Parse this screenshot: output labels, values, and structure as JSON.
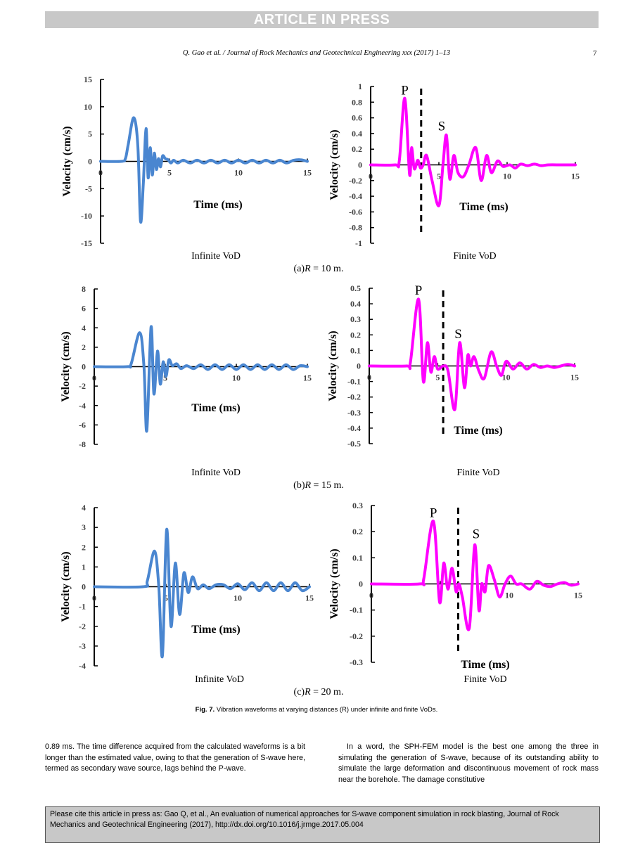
{
  "banner": "ARTICLE IN PRESS",
  "running_head": "Q. Gao et al. / Journal of Rock Mechanics and Geotechnical Engineering xxx (2017) 1–13",
  "page_number": "7",
  "figure": {
    "caption_label": "Fig. 7.",
    "caption_text": "Vibration waveforms at varying distances (R) under infinite and finite VoDs.",
    "panels": [
      {
        "caption_prefix": "(a)",
        "caption_var": "R",
        "caption_rest": " = 10 m."
      },
      {
        "caption_prefix": "(b)",
        "caption_var": "R",
        "caption_rest": " = 15 m."
      },
      {
        "caption_prefix": "(c)",
        "caption_var": "R",
        "caption_rest": " = 20 m."
      }
    ]
  },
  "colors": {
    "infinite": "#4a86d0",
    "finite": "#ff00ff"
  },
  "chart_data": [
    {
      "id": "a-infinite",
      "type": "line",
      "panel": "(a) R = 10 m",
      "subtitle": "Infinite VoD",
      "xlabel": "Time (ms)",
      "ylabel": "Velocity (cm/s)",
      "xlim": [
        0,
        15
      ],
      "ylim": [
        -15,
        15
      ],
      "xticks": [
        0,
        5,
        10,
        15
      ],
      "yticks": [
        15,
        10,
        5,
        0,
        -5,
        -10,
        -15
      ],
      "ytick_labels": [
        "15",
        "10",
        "5",
        "0",
        "-5",
        "-10",
        "-15"
      ],
      "series": [
        {
          "name": "Infinite VoD",
          "color": "#4a86d0",
          "x": [
            0,
            1.5,
            1.8,
            2.0,
            2.4,
            2.7,
            2.9,
            3.1,
            3.3,
            3.45,
            3.6,
            3.75,
            3.9,
            4.05,
            4.2,
            4.35,
            4.5,
            4.7,
            4.9,
            5.1,
            5.3,
            5.6,
            6,
            6.5,
            7,
            7.5,
            8,
            8.5,
            9,
            9.5,
            10,
            10.5,
            11,
            11.5,
            12,
            12.5,
            13,
            13.5,
            14,
            14.5,
            15
          ],
          "y": [
            0,
            0,
            0.5,
            3,
            8,
            3,
            -11,
            -4,
            6,
            -3,
            2.5,
            -2.5,
            1.5,
            -1.5,
            0.5,
            -1,
            1,
            0.5,
            0.3,
            -0.3,
            0.2,
            -0.3,
            0.2,
            -0.3,
            0.2,
            -0.3,
            0.2,
            -0.3,
            0.2,
            -0.3,
            0.2,
            -0.3,
            0.2,
            -0.3,
            0.2,
            -0.3,
            0.2,
            -0.3,
            0.2,
            0.3,
            0
          ]
        }
      ]
    },
    {
      "id": "a-finite",
      "type": "line",
      "panel": "(a) R = 10 m",
      "subtitle": "Finite VoD",
      "xlabel": "Time (ms)",
      "ylabel": "Velocity (cm/s)",
      "xlim": [
        0,
        15
      ],
      "ylim": [
        -1,
        1
      ],
      "xticks": [
        0,
        5,
        10,
        15
      ],
      "yticks": [
        1,
        0.8,
        0.6,
        0.4,
        0.2,
        0,
        -0.2,
        -0.4,
        -0.6,
        -0.8,
        -1
      ],
      "ytick_labels": [
        "1",
        "0.8",
        "0.6",
        "0.4",
        "0.2",
        "0",
        "-0.2",
        "-0.4",
        "-0.6",
        "-0.8",
        "-1"
      ],
      "annotations": [
        {
          "text": "P",
          "x": 2.5,
          "y": 0.88
        },
        {
          "text": "S",
          "x": 5.2,
          "y": 0.42
        }
      ],
      "dashed_line_x": 3.7,
      "series": [
        {
          "name": "Finite VoD",
          "color": "#ff00ff",
          "x": [
            0,
            1.8,
            2.1,
            2.5,
            2.85,
            3.0,
            3.2,
            3.45,
            3.65,
            3.85,
            4.1,
            4.5,
            5.0,
            5.3,
            5.55,
            5.8,
            6.1,
            6.4,
            6.8,
            7.2,
            7.7,
            8.1,
            8.5,
            8.85,
            9.3,
            9.7,
            10.2,
            10.6,
            11,
            11.5,
            12,
            12.5,
            13,
            14,
            15
          ],
          "y": [
            0,
            0,
            0.05,
            0.85,
            -0.12,
            0.22,
            -0.05,
            0.06,
            -0.04,
            0.0,
            0.12,
            -0.2,
            -0.52,
            0.0,
            0.38,
            -0.18,
            0.12,
            -0.1,
            -0.15,
            0.0,
            0.22,
            -0.2,
            0.12,
            -0.1,
            0.05,
            -0.02,
            0.0,
            -0.04,
            0.01,
            -0.01,
            0.01,
            -0.01,
            0.0,
            0.0,
            0
          ]
        }
      ]
    },
    {
      "id": "b-infinite",
      "type": "line",
      "panel": "(b) R = 15 m",
      "subtitle": "Infinite VoD",
      "xlabel": "Time (ms)",
      "ylabel": "Velocity (cm/s)",
      "xlim": [
        0,
        15
      ],
      "ylim": [
        -8,
        8
      ],
      "xticks": [
        0,
        5,
        10,
        15
      ],
      "yticks": [
        8,
        6,
        4,
        2,
        0,
        -2,
        -4,
        -6,
        -8
      ],
      "ytick_labels": [
        "8",
        "6",
        "4",
        "2",
        "0",
        "-2",
        "-4",
        "-6",
        "-8"
      ],
      "series": [
        {
          "name": "Infinite VoD",
          "color": "#4a86d0",
          "x": [
            0,
            2.3,
            2.6,
            3.2,
            3.5,
            3.7,
            4.0,
            4.2,
            4.45,
            4.65,
            4.85,
            5.05,
            5.25,
            5.5,
            5.8,
            6.1,
            6.5,
            7,
            7.5,
            8,
            8.5,
            9,
            9.5,
            10,
            10.5,
            11,
            11.5,
            12,
            12.5,
            13,
            13.5,
            14,
            14.5,
            15
          ],
          "y": [
            0,
            0,
            0.3,
            3.5,
            0,
            -6.6,
            4.1,
            -2.8,
            1.6,
            -1.8,
            0.5,
            -1,
            0.7,
            0.1,
            0.3,
            -0.2,
            0.1,
            -0.2,
            0.2,
            -0.3,
            0.2,
            -0.3,
            0.2,
            -0.3,
            0.2,
            -0.3,
            0.2,
            -0.3,
            0.2,
            -0.3,
            0.2,
            -0.3,
            0.1,
            0
          ]
        }
      ]
    },
    {
      "id": "b-finite",
      "type": "line",
      "panel": "(b) R = 15 m",
      "subtitle": "Finite VoD",
      "xlabel": "Time (ms)",
      "ylabel": "Velocity (cm/s)",
      "xlim": [
        0,
        15
      ],
      "ylim": [
        -0.5,
        0.5
      ],
      "xticks": [
        0,
        5,
        10,
        15
      ],
      "yticks": [
        0.5,
        0.4,
        0.3,
        0.2,
        0.1,
        0,
        -0.1,
        -0.2,
        -0.3,
        -0.4,
        -0.5
      ],
      "ytick_labels": [
        "0.5",
        "0.4",
        "0.3",
        "0.2",
        "0.1",
        "0",
        "-0.1",
        "-0.2",
        "-0.3",
        "-0.4",
        "-0.5"
      ],
      "annotations": [
        {
          "text": "P",
          "x": 3.6,
          "y": 0.45
        },
        {
          "text": "S",
          "x": 6.5,
          "y": 0.17
        }
      ],
      "dashed_line_x": 5.4,
      "series": [
        {
          "name": "Finite VoD",
          "color": "#ff00ff",
          "x": [
            0,
            2.7,
            3.0,
            3.6,
            3.95,
            4.25,
            4.5,
            4.75,
            5.0,
            5.4,
            5.75,
            6.25,
            6.6,
            6.95,
            7.2,
            7.4,
            7.65,
            8.0,
            8.4,
            8.9,
            9.3,
            9.65,
            10.0,
            10.5,
            11,
            11.5,
            12,
            12.5,
            13,
            13.5,
            14,
            14.5,
            15
          ],
          "y": [
            0,
            0,
            0.02,
            0.43,
            -0.1,
            0.15,
            -0.04,
            0.06,
            -0.02,
            0.0,
            -0.03,
            -0.28,
            0.15,
            -0.14,
            0.07,
            0.0,
            0.06,
            -0.03,
            -0.08,
            0.09,
            0.0,
            -0.06,
            0.03,
            -0.02,
            0.02,
            -0.02,
            0.01,
            -0.01,
            0.0,
            -0.01,
            0.0,
            0.01,
            0
          ]
        }
      ]
    },
    {
      "id": "c-infinite",
      "type": "line",
      "panel": "(c) R = 20 m",
      "subtitle": "Infinite VoD",
      "xlabel": "Time (ms)",
      "ylabel": "Velocity (cm/s)",
      "xlim": [
        0,
        15
      ],
      "ylim": [
        -4,
        4
      ],
      "xticks": [
        0,
        5,
        10,
        15
      ],
      "yticks": [
        4,
        3,
        2,
        1,
        0,
        -1,
        -2,
        -3,
        -4
      ],
      "ytick_labels": [
        "4",
        "3",
        "2",
        "1",
        "0",
        "-1",
        "-2",
        "-3",
        "-4"
      ],
      "series": [
        {
          "name": "Infinite VoD",
          "color": "#4a86d0",
          "x": [
            0,
            3.4,
            3.7,
            4.2,
            4.5,
            4.75,
            5.05,
            5.35,
            5.65,
            5.95,
            6.25,
            6.55,
            6.85,
            7.2,
            7.6,
            8,
            8.5,
            9,
            9.5,
            10,
            10.5,
            11,
            11.5,
            12,
            12.5,
            13,
            13.5,
            14,
            14.5,
            15
          ],
          "y": [
            0,
            0,
            0.3,
            1.8,
            0,
            -3.5,
            2.9,
            -2.0,
            1.2,
            -1.4,
            0.7,
            -0.3,
            0.5,
            -0.1,
            0.1,
            -0.1,
            0.1,
            0.1,
            -0.1,
            0.15,
            -0.15,
            0.2,
            -0.2,
            0.2,
            -0.2,
            0.2,
            -0.2,
            0.2,
            -0.2,
            0
          ]
        }
      ]
    },
    {
      "id": "c-finite",
      "type": "line",
      "panel": "(c) R = 20 m",
      "subtitle": "Finite VoD",
      "xlabel": "Time (ms)",
      "ylabel": "Velocity (cm/s)",
      "xlim": [
        0,
        15
      ],
      "ylim": [
        -0.3,
        0.3
      ],
      "xticks": [
        0,
        5,
        10,
        15
      ],
      "yticks": [
        0.3,
        0.2,
        0.1,
        0,
        -0.1,
        -0.2,
        -0.3
      ],
      "ytick_labels": [
        "0.3",
        "0.2",
        "0.1",
        "0",
        "-0.1",
        "-0.2",
        "-0.3"
      ],
      "annotations": [
        {
          "text": "P",
          "x": 4.5,
          "y": 0.25
        },
        {
          "text": "S",
          "x": 7.6,
          "y": 0.17
        }
      ],
      "dashed_line_x": 6.3,
      "series": [
        {
          "name": "Finite VoD",
          "color": "#ff00ff",
          "x": [
            0,
            3.5,
            3.8,
            4.5,
            4.95,
            5.25,
            5.55,
            5.85,
            6.15,
            6.35,
            6.6,
            7.1,
            7.5,
            7.8,
            8.0,
            8.25,
            8.5,
            8.9,
            9.3,
            9.7,
            10.1,
            10.5,
            10.9,
            11.5,
            12,
            12.5,
            13,
            13.5,
            14,
            14.5,
            15
          ],
          "y": [
            0,
            0,
            0.02,
            0.24,
            -0.07,
            0.08,
            -0.02,
            0.06,
            -0.03,
            0.0,
            -0.05,
            -0.17,
            0.15,
            -0.1,
            0.0,
            -0.03,
            0.07,
            0.02,
            -0.05,
            0.0,
            0.03,
            0.0,
            0.0,
            -0.02,
            0.01,
            -0.005,
            -0.01,
            0.0,
            0.005,
            -0.005,
            0
          ]
        }
      ]
    }
  ],
  "body": {
    "left_column": "0.89 ms. The time difference acquired from the calculated waveforms is a bit longer than the estimated value, owing to that the generation of S-wave here, termed as secondary wave source, lags behind the P-wave.",
    "right_column": "In a word, the SPH-FEM model is the best one among the three in simulating the generation of S-wave, because of its outstanding ability to simulate the large deformation and discontinuous movement of rock mass near the borehole. The damage constitutive"
  },
  "citation_box": "Please cite this article in press as: Gao Q, et al., An evaluation of numerical approaches for S-wave component simulation in rock blasting, Journal of Rock Mechanics and Geotechnical Engineering (2017), http://dx.doi.org/10.1016/j.jrmge.2017.05.004"
}
